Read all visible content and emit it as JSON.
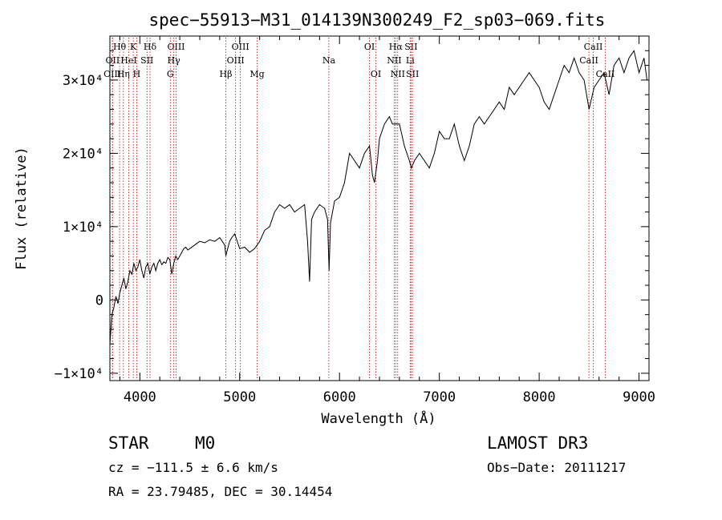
{
  "chart_data": {
    "type": "line",
    "title": "spec−55913−M31_014139N300249_F2_sp03−069.fits",
    "xlabel": "Wavelength (Å)",
    "ylabel": "Flux (relative)",
    "xlim": [
      3700,
      9100
    ],
    "ylim": [
      -11000,
      36000
    ],
    "x_ticks": [
      {
        "value": 4000,
        "label": "4000"
      },
      {
        "value": 5000,
        "label": "5000"
      },
      {
        "value": 6000,
        "label": "6000"
      },
      {
        "value": 7000,
        "label": "7000"
      },
      {
        "value": 8000,
        "label": "8000"
      },
      {
        "value": 9000,
        "label": "9000"
      }
    ],
    "y_ticks": [
      {
        "value": -10000,
        "label": "−1×10⁴"
      },
      {
        "value": 0,
        "label": "0"
      },
      {
        "value": 10000,
        "label": "1×10⁴"
      },
      {
        "value": 20000,
        "label": "2×10⁴"
      },
      {
        "value": 30000,
        "label": "3×10⁴"
      }
    ],
    "series": [
      {
        "name": "flux",
        "x": [
          3700,
          3720,
          3740,
          3760,
          3780,
          3800,
          3820,
          3840,
          3860,
          3880,
          3900,
          3920,
          3940,
          3960,
          3980,
          4000,
          4020,
          4040,
          4060,
          4080,
          4100,
          4120,
          4140,
          4160,
          4180,
          4200,
          4220,
          4240,
          4260,
          4280,
          4300,
          4320,
          4340,
          4360,
          4380,
          4400,
          4420,
          4440,
          4460,
          4480,
          4500,
          4550,
          4600,
          4650,
          4700,
          4750,
          4800,
          4850,
          4861,
          4880,
          4900,
          4920,
          4950,
          5000,
          5050,
          5100,
          5150,
          5200,
          5250,
          5300,
          5350,
          5400,
          5450,
          5500,
          5550,
          5600,
          5650,
          5680,
          5700,
          5720,
          5750,
          5800,
          5850,
          5880,
          5895,
          5910,
          5930,
          5950,
          6000,
          6050,
          6100,
          6150,
          6200,
          6250,
          6300,
          6330,
          6350,
          6380,
          6400,
          6450,
          6500,
          6530,
          6563,
          6600,
          6650,
          6700,
          6720,
          6750,
          6800,
          6850,
          6900,
          6950,
          7000,
          7050,
          7100,
          7150,
          7200,
          7250,
          7300,
          7350,
          7400,
          7450,
          7500,
          7550,
          7600,
          7650,
          7700,
          7750,
          7800,
          7850,
          7900,
          7950,
          8000,
          8050,
          8100,
          8150,
          8200,
          8250,
          8300,
          8350,
          8400,
          8450,
          8500,
          8550,
          8600,
          8650,
          8700,
          8750,
          8800,
          8850,
          8900,
          8950,
          9000,
          9050,
          9080
        ],
        "y": [
          -6000,
          -2000,
          -1000,
          500,
          -500,
          1000,
          2000,
          3000,
          1500,
          2500,
          4000,
          3500,
          5000,
          4000,
          4500,
          5500,
          4000,
          3000,
          4500,
          5000,
          3500,
          4500,
          5000,
          4000,
          5000,
          5500,
          4800,
          5200,
          5000,
          5800,
          5500,
          3500,
          5000,
          6000,
          5500,
          6000,
          6500,
          7000,
          7200,
          6800,
          7000,
          7500,
          8000,
          7800,
          8200,
          8000,
          8500,
          7500,
          6000,
          7000,
          8000,
          8500,
          9000,
          7000,
          7200,
          6500,
          7000,
          8000,
          9500,
          10000,
          12000,
          13000,
          12500,
          13000,
          12000,
          12500,
          13000,
          8000,
          2500,
          11000,
          12000,
          13000,
          12500,
          11000,
          4000,
          10500,
          12000,
          13500,
          14000,
          16000,
          20000,
          19000,
          18000,
          20000,
          21000,
          17000,
          16000,
          19000,
          22000,
          24000,
          25000,
          24000,
          24000,
          24000,
          21000,
          19000,
          18000,
          19000,
          20000,
          19000,
          18000,
          20000,
          23000,
          22000,
          22000,
          24000,
          21000,
          19000,
          21000,
          24000,
          25000,
          24000,
          25000,
          26000,
          27000,
          26000,
          29000,
          28000,
          29000,
          30000,
          31000,
          30000,
          29000,
          27000,
          26000,
          28000,
          30000,
          32000,
          31000,
          33000,
          31000,
          30000,
          26000,
          29000,
          30000,
          31000,
          28000,
          32000,
          33000,
          31000,
          33000,
          34000,
          31000,
          33000,
          30000
        ]
      }
    ],
    "line_labels": [
      {
        "label": "Hθ",
        "x": 3797,
        "row": 1
      },
      {
        "label": "OII",
        "x": 3727,
        "row": 2
      },
      {
        "label": "OIII",
        "x": 3725,
        "row": 3
      },
      {
        "label": "K",
        "x": 3934,
        "row": 1
      },
      {
        "label": "HeI",
        "x": 3889,
        "row": 2
      },
      {
        "label": "Hη",
        "x": 3835,
        "row": 3
      },
      {
        "label": "H",
        "x": 3969,
        "row": 3
      },
      {
        "label": "Hδ",
        "x": 4102,
        "row": 1
      },
      {
        "label": "SII",
        "x": 4072,
        "row": 2
      },
      {
        "label": "OIII",
        "x": 4363,
        "row": 1
      },
      {
        "label": "Hγ",
        "x": 4340,
        "row": 2
      },
      {
        "label": "G",
        "x": 4305,
        "row": 3
      },
      {
        "label": "OIII",
        "x": 5007,
        "row": 1
      },
      {
        "label": "OIII",
        "x": 4959,
        "row": 2
      },
      {
        "label": "Hβ",
        "x": 4861,
        "row": 3
      },
      {
        "label": "Mg",
        "x": 5175,
        "row": 3
      },
      {
        "label": "Na",
        "x": 5893,
        "row": 2
      },
      {
        "label": "OI",
        "x": 6300,
        "row": 1
      },
      {
        "label": "OI",
        "x": 6364,
        "row": 3
      },
      {
        "label": "Hα",
        "x": 6563,
        "row": 1
      },
      {
        "label": "SII",
        "x": 6716,
        "row": 1
      },
      {
        "label": "NII",
        "x": 6548,
        "row": 2
      },
      {
        "label": "Li",
        "x": 6708,
        "row": 2
      },
      {
        "label": "NII",
        "x": 6583,
        "row": 3
      },
      {
        "label": "SII",
        "x": 6731,
        "row": 3
      },
      {
        "label": "CaII",
        "x": 8542,
        "row": 1
      },
      {
        "label": "CaII",
        "x": 8498,
        "row": 2
      },
      {
        "label": "CaII",
        "x": 8662,
        "row": 3
      }
    ],
    "line_marker_color": "#cc0000",
    "line_color": "#000000"
  },
  "info": {
    "class": "STAR",
    "subclass": "M0",
    "survey": "LAMOST DR3",
    "cz": "cz = −111.5 ± 6.6 km/s",
    "obs_date": "Obs−Date: 20111217",
    "coords": "RA =  23.79485, DEC =  30.14454"
  }
}
